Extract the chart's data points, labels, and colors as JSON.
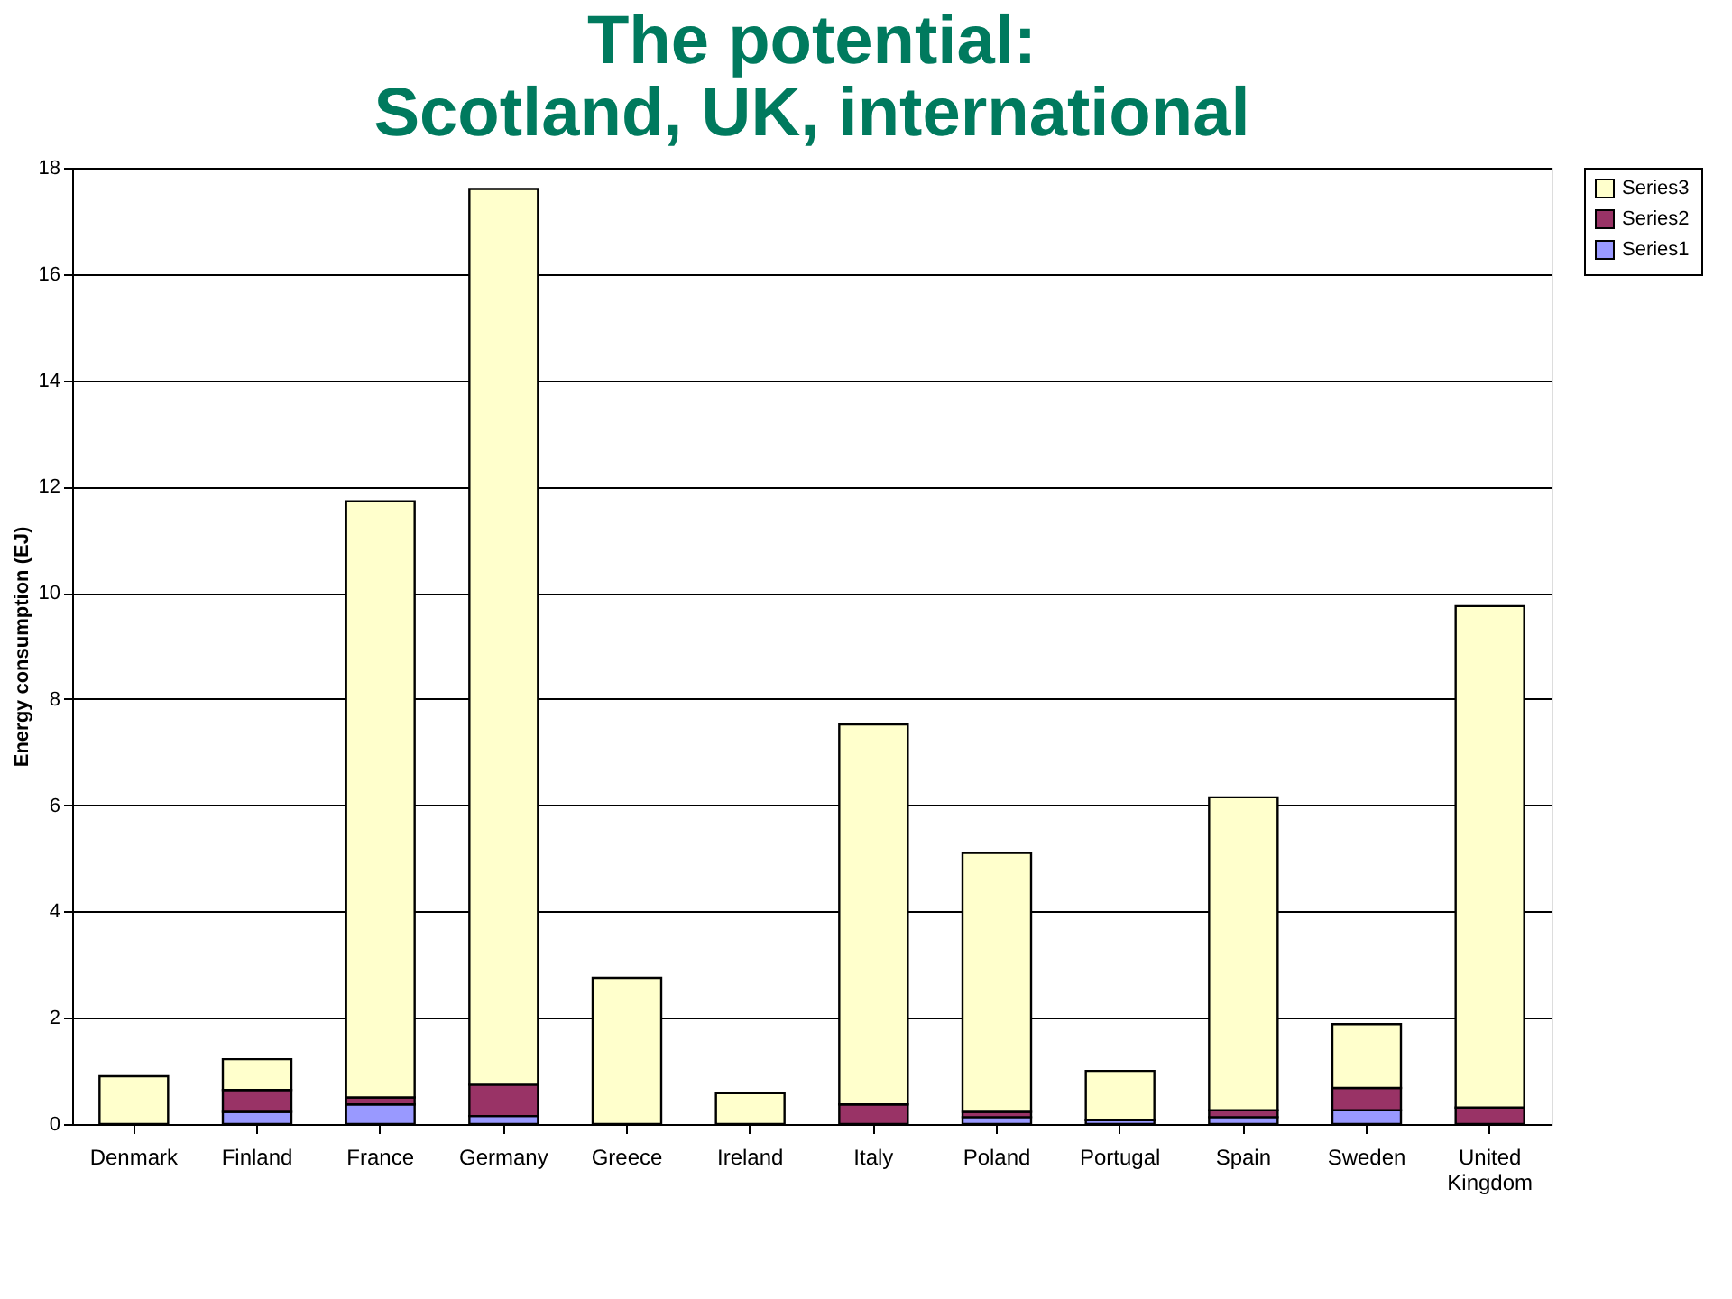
{
  "chart_data": {
    "type": "bar",
    "stacked": true,
    "title": [
      "The potential:",
      "Scotland, UK, international"
    ],
    "ylabel": "Energy consumption (EJ)",
    "categories": [
      "Denmark",
      "Finland",
      "France",
      "Germany",
      "Greece",
      "Ireland",
      "Italy",
      "Poland",
      "Portugal",
      "Spain",
      "Sweden",
      "United Kingdom"
    ],
    "series": [
      {
        "name": "Series1",
        "color": "#9999ff",
        "values": [
          0,
          0.23,
          0.37,
          0.15,
          0,
          0,
          0,
          0.13,
          0.07,
          0.13,
          0.26,
          0
        ]
      },
      {
        "name": "Series2",
        "color": "#993366",
        "values": [
          0,
          0.41,
          0.13,
          0.59,
          0,
          0,
          0.37,
          0.1,
          0,
          0.13,
          0.42,
          0.31
        ]
      },
      {
        "name": "Series3",
        "color": "#ffffcc",
        "values": [
          0.9,
          0.58,
          11.22,
          16.86,
          2.75,
          0.58,
          7.15,
          4.87,
          0.93,
          5.89,
          1.2,
          9.44
        ]
      }
    ],
    "ylim": [
      0,
      18
    ],
    "yticks": [
      0,
      2,
      4,
      6,
      8,
      10,
      12,
      14,
      16,
      18
    ],
    "grid": "y",
    "legend": "right"
  }
}
